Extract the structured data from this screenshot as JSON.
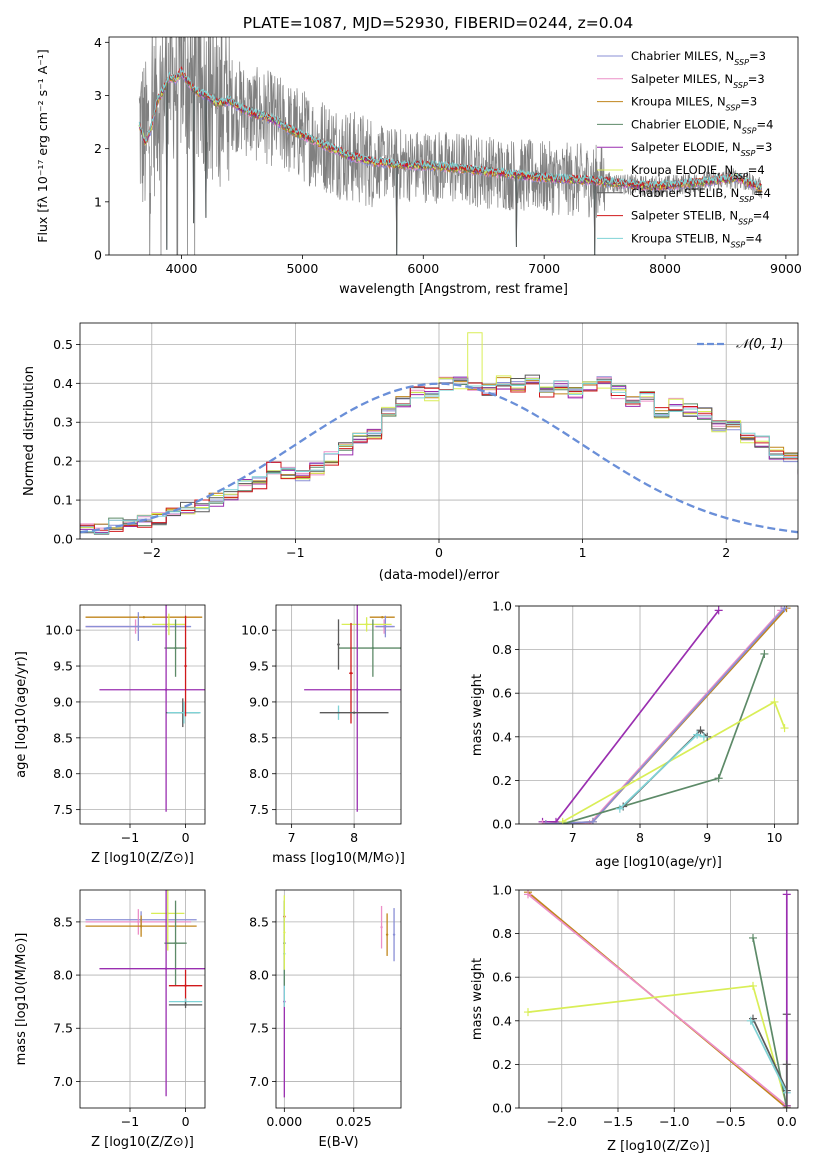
{
  "figure": {
    "title": "PLATE=1087, MJD=52930, FIBERID=0244, z=0.04"
  },
  "colors": {
    "Chabrier MILES": "#8a8fd6",
    "Salpeter MILES": "#ec8fc7",
    "Kroupa MILES": "#c0851b",
    "Chabrier ELODIE": "#5d8a68",
    "Salpeter ELODIE": "#9a2fb0",
    "Kroupa ELODIE": "#d9ee57",
    "Chabrier STELIB": "#5a5a5a",
    "Salpeter STELIB": "#d0191b",
    "Kroupa STELIB": "#7fd3d6",
    "data": "#808080",
    "gaussian": "#6a8fd8"
  },
  "chart_data": [
    {
      "id": "spectrum",
      "type": "line",
      "xlabel": "wavelength [Angstrom, rest frame]",
      "ylabel": "Flux [f_λ 10^-17 erg cm^-2 s^-1 A^-1]",
      "xlim": [
        3400,
        9100
      ],
      "ylim": [
        0,
        4.1
      ],
      "xticks": [
        4000,
        5000,
        6000,
        7000,
        8000,
        9000
      ],
      "yticks": [
        0,
        1,
        2,
        3,
        4
      ],
      "grid": false,
      "legend_position": "upper-right",
      "legend": [
        {
          "main": "Chabrier MILES, N",
          "sub": "SSP",
          "tail": "=3",
          "series": "Chabrier MILES"
        },
        {
          "main": "Salpeter MILES, N",
          "sub": "SSP",
          "tail": "=3",
          "series": "Salpeter MILES"
        },
        {
          "main": "Kroupa MILES, N",
          "sub": "SSP",
          "tail": "=3",
          "series": "Kroupa MILES"
        },
        {
          "main": "Chabrier ELODIE, N",
          "sub": "SSP",
          "tail": "=4",
          "series": "Chabrier ELODIE"
        },
        {
          "main": "Salpeter ELODIE, N",
          "sub": "SSP",
          "tail": "=3",
          "series": "Salpeter ELODIE"
        },
        {
          "main": "Kroupa ELODIE, N",
          "sub": "SSP",
          "tail": "=4",
          "series": "Kroupa ELODIE"
        },
        {
          "main": "Chabrier STELIB, N",
          "sub": "SSP",
          "tail": "=4",
          "series": "Chabrier STELIB"
        },
        {
          "main": "Salpeter STELIB, N",
          "sub": "SSP",
          "tail": "=4",
          "series": "Salpeter STELIB"
        },
        {
          "main": "Kroupa STELIB, N",
          "sub": "SSP",
          "tail": "=4",
          "series": "Kroupa STELIB"
        }
      ],
      "model_continuum": [
        [
          3650,
          2.45
        ],
        [
          3700,
          2.1
        ],
        [
          3750,
          2.4
        ],
        [
          3800,
          2.9
        ],
        [
          3850,
          3.1
        ],
        [
          3900,
          3.35
        ],
        [
          3950,
          3.3
        ],
        [
          4000,
          3.45
        ],
        [
          4100,
          3.1
        ],
        [
          4200,
          3.0
        ],
        [
          4300,
          2.85
        ],
        [
          4400,
          2.9
        ],
        [
          4500,
          2.75
        ],
        [
          4600,
          2.65
        ],
        [
          4700,
          2.6
        ],
        [
          4800,
          2.5
        ],
        [
          4900,
          2.35
        ],
        [
          5000,
          2.25
        ],
        [
          5200,
          2.05
        ],
        [
          5400,
          1.85
        ],
        [
          5600,
          1.75
        ],
        [
          5800,
          1.7
        ],
        [
          6000,
          1.68
        ],
        [
          6200,
          1.65
        ],
        [
          6400,
          1.6
        ],
        [
          6600,
          1.55
        ],
        [
          6800,
          1.5
        ],
        [
          7000,
          1.45
        ],
        [
          7200,
          1.42
        ],
        [
          7400,
          1.4
        ],
        [
          7600,
          1.35
        ],
        [
          7800,
          1.3
        ],
        [
          8000,
          1.3
        ],
        [
          8200,
          1.35
        ],
        [
          8400,
          1.4
        ],
        [
          8600,
          1.45
        ],
        [
          8800,
          1.25
        ]
      ],
      "model_dips": [
        [
          5780,
          0
        ],
        [
          7420,
          0
        ],
        [
          6770,
          0.15
        ],
        [
          3880,
          0.1
        ],
        [
          4100,
          0.6
        ],
        [
          4200,
          0.7
        ]
      ]
    },
    {
      "id": "residuals",
      "type": "histogram",
      "xlabel": "(data-model)/error",
      "ylabel": "Normed distribution",
      "xlim": [
        -2.5,
        2.5
      ],
      "ylim": [
        0,
        0.555
      ],
      "xticks": [
        -2,
        -1,
        0,
        1,
        2
      ],
      "yticks": [
        0.0,
        0.1,
        0.2,
        0.3,
        0.4,
        0.5
      ],
      "grid": true,
      "legend_position": "upper-right",
      "reference_label": "𝒩(0, 1)",
      "bin_width": 0.1,
      "base_profile": [
        0.019,
        0.022,
        0.028,
        0.037,
        0.044,
        0.046,
        0.052,
        0.066,
        0.078,
        0.084,
        0.1,
        0.112,
        0.136,
        0.145,
        0.183,
        0.171,
        0.165,
        0.178,
        0.207,
        0.231,
        0.26,
        0.27,
        0.33,
        0.35,
        0.38,
        0.372,
        0.4,
        0.402,
        0.39,
        0.382,
        0.402,
        0.395,
        0.415,
        0.38,
        0.39,
        0.38,
        0.396,
        0.405,
        0.378,
        0.358,
        0.365,
        0.323,
        0.345,
        0.33,
        0.32,
        0.29,
        0.29,
        0.262,
        0.249,
        0.22,
        0.213,
        0.18,
        0.178,
        0.165,
        0.155,
        0.125,
        0.12,
        0.099,
        0.089,
        0.078,
        0.068,
        0.061,
        0.053,
        0.049,
        0.041,
        0.035,
        0.031,
        0.027,
        0.022,
        0.018
      ]
    },
    {
      "id": "age-vs-Z",
      "type": "scatter",
      "xlabel": "Z [log10(Z/Z⊙)]",
      "ylabel": "age [log10(age/yr)]",
      "xlim": [
        -1.9,
        0.35
      ],
      "ylim": [
        7.3,
        10.35
      ],
      "xticks": [
        -1,
        0
      ],
      "yticks": [
        7.5,
        8.0,
        8.5,
        9.0,
        9.5,
        10.0
      ],
      "grid": true,
      "points": [
        {
          "s": "Kroupa MILES",
          "x": -0.75,
          "y": 10.18,
          "xe": 1.05,
          "ye": 0
        },
        {
          "s": "Salpeter MILES",
          "x": -0.9,
          "y": 10.05,
          "xe": 0.9,
          "ye": 0.1
        },
        {
          "s": "Chabrier MILES",
          "x": -0.85,
          "y": 10.05,
          "xe": 0.95,
          "ye": 0.2
        },
        {
          "s": "Kroupa ELODIE",
          "x": -0.3,
          "y": 10.08,
          "xe": 0.3,
          "ye": 0.15
        },
        {
          "s": "Chabrier ELODIE",
          "x": -0.18,
          "y": 9.75,
          "xe": 0.2,
          "ye": 0.4
        },
        {
          "s": "Salpeter ELODIE",
          "x": -0.35,
          "y": 9.17,
          "xe": 1.2,
          "ye": 1.7
        },
        {
          "s": "Chabrier STELIB",
          "x": -0.05,
          "y": 8.85,
          "xe": 0.3,
          "ye": 0.2
        },
        {
          "s": "Kroupa STELIB",
          "x": -0.03,
          "y": 8.85,
          "xe": 0.3,
          "ye": 0.15
        },
        {
          "s": "Salpeter STELIB",
          "x": 0.0,
          "y": 9.5,
          "xe": 0.02,
          "ye": 0.7
        }
      ]
    },
    {
      "id": "age-vs-mass",
      "type": "scatter",
      "xlabel": "mass [log10(M/M⊙)]",
      "ylabel": "",
      "xlim": [
        6.75,
        8.75
      ],
      "ylim": [
        7.3,
        10.35
      ],
      "xticks": [
        7,
        8
      ],
      "yticks": [
        7.5,
        8.0,
        8.5,
        9.0,
        9.5,
        10.0
      ],
      "grid": true,
      "points": [
        {
          "s": "Kroupa MILES",
          "x": 8.45,
          "y": 10.18,
          "xe": 0.2,
          "ye": 0
        },
        {
          "s": "Salpeter MILES",
          "x": 8.48,
          "y": 10.05,
          "xe": 0.15,
          "ye": 0.1
        },
        {
          "s": "Chabrier MILES",
          "x": 8.5,
          "y": 10.05,
          "xe": 0.15,
          "ye": 0.15
        },
        {
          "s": "Kroupa ELODIE",
          "x": 8.2,
          "y": 10.08,
          "xe": 0.4,
          "ye": 0.1
        },
        {
          "s": "Chabrier ELODIE",
          "x": 8.3,
          "y": 9.75,
          "xe": 0.55,
          "ye": 0.4
        },
        {
          "s": "Salpeter ELODIE",
          "x": 8.05,
          "y": 9.17,
          "xe": 0.85,
          "ye": 1.7
        },
        {
          "s": "Chabrier STELIB",
          "x": 7.75,
          "y": 9.8,
          "xe": 0.02,
          "ye": 0.35
        },
        {
          "s": "Kroupa STELIB",
          "x": 7.75,
          "y": 8.85,
          "xe": 0.02,
          "ye": 0.1
        },
        {
          "s": "Salpeter STELIB",
          "x": 7.95,
          "y": 9.4,
          "xe": 0.03,
          "ye": 0.7
        },
        {
          "s": "Chabrier STELIB",
          "x": 8.0,
          "y": 8.85,
          "xe": 0.55,
          "ye": 0
        }
      ]
    },
    {
      "id": "weight-vs-age",
      "type": "line",
      "xlabel": "age [log10(age/yr)]",
      "ylabel": "mass weight",
      "xlim": [
        6.2,
        10.35
      ],
      "ylim": [
        0.0,
        1.0
      ],
      "xticks": [
        7,
        8,
        9,
        10
      ],
      "yticks": [
        0.0,
        0.2,
        0.4,
        0.6,
        0.8,
        1.0
      ],
      "grid": true,
      "series": [
        {
          "s": "Salpeter ELODIE",
          "x": [
            6.55,
            6.75,
            9.17
          ],
          "y": [
            0.01,
            0.01,
            0.98
          ]
        },
        {
          "s": "Salpeter MILES",
          "x": [
            6.55,
            7.25,
            10.1
          ],
          "y": [
            0.0,
            0.0,
            0.98
          ]
        },
        {
          "s": "Kroupa MILES",
          "x": [
            6.6,
            7.3,
            10.18
          ],
          "y": [
            0.0,
            0.01,
            0.99
          ]
        },
        {
          "s": "Chabrier MILES",
          "x": [
            6.6,
            7.3,
            10.15
          ],
          "y": [
            0.0,
            0.01,
            0.99
          ]
        },
        {
          "s": "Chabrier ELODIE",
          "x": [
            6.85,
            9.17,
            9.85
          ],
          "y": [
            0.0,
            0.21,
            0.78
          ]
        },
        {
          "s": "Kroupa ELODIE",
          "x": [
            6.85,
            10.0,
            10.15
          ],
          "y": [
            0.01,
            0.56,
            0.44
          ]
        },
        {
          "s": "Chabrier STELIB",
          "x": [
            7.75,
            8.9,
            9.0
          ],
          "y": [
            0.08,
            0.43,
            0.4
          ]
        },
        {
          "s": "Kroupa STELIB",
          "x": [
            7.7,
            8.85,
            8.95
          ],
          "y": [
            0.07,
            0.41,
            0.4
          ]
        }
      ]
    },
    {
      "id": "mass-vs-Z",
      "type": "scatter",
      "xlabel": "Z [log10(Z/Z⊙)]",
      "ylabel": "mass [log10(M/M⊙)]",
      "xlim": [
        -1.9,
        0.35
      ],
      "ylim": [
        6.75,
        8.8
      ],
      "xticks": [
        -1,
        0
      ],
      "yticks": [
        7.0,
        7.5,
        8.0,
        8.5
      ],
      "grid": true,
      "points": [
        {
          "s": "Chabrier MILES",
          "x": -0.8,
          "y": 8.52,
          "xe": 1.0,
          "ye": 0.08
        },
        {
          "s": "Salpeter MILES",
          "x": -0.85,
          "y": 8.5,
          "xe": 0.95,
          "ye": 0.12
        },
        {
          "s": "Kroupa MILES",
          "x": -0.8,
          "y": 8.46,
          "xe": 1.0,
          "ye": 0.1
        },
        {
          "s": "Kroupa ELODIE",
          "x": -0.32,
          "y": 8.58,
          "xe": 0.3,
          "ye": 0.35
        },
        {
          "s": "Chabrier ELODIE",
          "x": -0.18,
          "y": 8.3,
          "xe": 0.2,
          "ye": 0.4
        },
        {
          "s": "Salpeter ELODIE",
          "x": -0.35,
          "y": 8.06,
          "xe": 1.2,
          "ye": 1.2
        },
        {
          "s": "Salpeter STELIB",
          "x": 0.0,
          "y": 7.9,
          "xe": 0.3,
          "ye": 0.15
        },
        {
          "s": "Kroupa STELIB",
          "x": 0.0,
          "y": 7.75,
          "xe": 0.3,
          "ye": 0.03
        },
        {
          "s": "Chabrier STELIB",
          "x": 0.0,
          "y": 7.72,
          "xe": 0.3,
          "ye": 0.03
        }
      ]
    },
    {
      "id": "mass-vs-EBV",
      "type": "scatter",
      "xlabel": "E(B-V)",
      "ylabel": "",
      "xlim": [
        -0.003,
        0.042
      ],
      "ylim": [
        6.75,
        8.8
      ],
      "xticks": [
        0.0,
        0.025
      ],
      "xtick_labels": [
        "0.000",
        "0.025"
      ],
      "yticks": [
        7.0,
        7.5,
        8.0,
        8.5
      ],
      "grid": true,
      "points": [
        {
          "s": "Salpeter MILES",
          "x": 0.035,
          "y": 8.45,
          "xe": 0,
          "ye": 0.2
        },
        {
          "s": "Kroupa MILES",
          "x": 0.037,
          "y": 8.38,
          "xe": 0,
          "ye": 0.2
        },
        {
          "s": "Chabrier MILES",
          "x": 0.0395,
          "y": 8.38,
          "xe": 0,
          "ye": 0.25
        },
        {
          "s": "Salpeter ELODIE",
          "x": 0.0,
          "y": 7.75,
          "xe": 0,
          "ye": 0.9
        },
        {
          "s": "Salpeter STELIB",
          "x": 0.0,
          "y": 8.55,
          "xe": 0,
          "ye": 0.15
        },
        {
          "s": "Kroupa STELIB",
          "x": 0.0,
          "y": 8.2,
          "xe": 0,
          "ye": 0.5
        },
        {
          "s": "Chabrier ELODIE",
          "x": 0.0,
          "y": 8.3,
          "xe": 0,
          "ye": 0.4
        },
        {
          "s": "Kroupa ELODIE",
          "x": 0.0,
          "y": 8.4,
          "xe": 0,
          "ye": 0.35
        }
      ]
    },
    {
      "id": "weight-vs-Z",
      "type": "line",
      "xlabel": "Z [log10(Z/Z⊙)]",
      "ylabel": "mass weight",
      "xlim": [
        -2.38,
        0.1
      ],
      "ylim": [
        0.0,
        1.0
      ],
      "xticks": [
        -2.0,
        -1.5,
        -1.0,
        -0.5,
        0.0
      ],
      "xtick_labels": [
        "−2.0",
        "−1.5",
        "−1.0",
        "−0.5",
        "0.0"
      ],
      "yticks": [
        0.0,
        0.2,
        0.4,
        0.6,
        0.8,
        1.0
      ],
      "grid": true,
      "series": [
        {
          "s": "Kroupa MILES",
          "x": [
            -2.3,
            0.0
          ],
          "y": [
            0.99,
            0.0
          ]
        },
        {
          "s": "Salpeter MILES",
          "x": [
            -2.3,
            0.0
          ],
          "y": [
            0.98,
            0.01
          ]
        },
        {
          "s": "Kroupa ELODIE",
          "x": [
            -2.3,
            -0.3,
            0.0
          ],
          "y": [
            0.44,
            0.56,
            0.01
          ]
        },
        {
          "s": "Chabrier ELODIE",
          "x": [
            -0.3,
            0.0
          ],
          "y": [
            0.78,
            0.0
          ]
        },
        {
          "s": "Chabrier STELIB",
          "x": [
            -0.3,
            0.0,
            0.0
          ],
          "y": [
            0.41,
            0.08,
            0.43
          ]
        },
        {
          "s": "Kroupa STELIB",
          "x": [
            -0.32,
            0.0
          ],
          "y": [
            0.4,
            0.07
          ]
        },
        {
          "s": "Salpeter ELODIE",
          "x": [
            0.0,
            0.0
          ],
          "y": [
            0.98,
            0.01
          ]
        },
        {
          "s": "Chabrier STELIB",
          "x": [
            0.0,
            0.0
          ],
          "y": [
            0.2,
            0.0
          ]
        }
      ]
    }
  ]
}
